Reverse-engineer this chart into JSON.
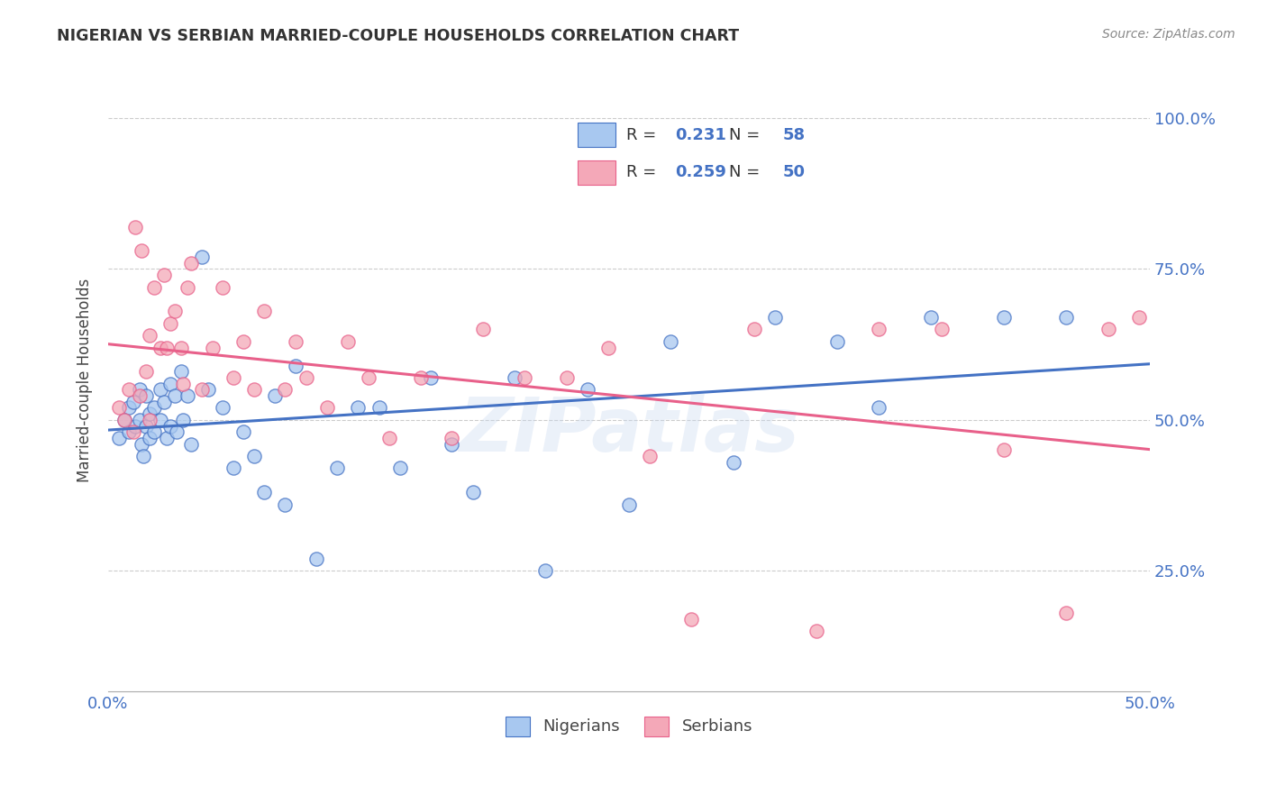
{
  "title": "NIGERIAN VS SERBIAN MARRIED-COUPLE HOUSEHOLDS CORRELATION CHART",
  "source": "Source: ZipAtlas.com",
  "ylabel": "Married-couple Households",
  "x_min": 0.0,
  "x_max": 0.5,
  "y_min": 0.05,
  "y_max": 1.08,
  "nigerian_R": 0.231,
  "nigerian_N": 58,
  "serbian_R": 0.259,
  "serbian_N": 50,
  "nigerian_color": "#A8C8F0",
  "serbian_color": "#F4A8B8",
  "nigerian_line_color": "#4472C4",
  "serbian_line_color": "#E8608A",
  "watermark": "ZIPatlas",
  "nigerian_x": [
    0.005,
    0.008,
    0.01,
    0.01,
    0.012,
    0.013,
    0.015,
    0.015,
    0.016,
    0.017,
    0.018,
    0.018,
    0.02,
    0.02,
    0.022,
    0.022,
    0.025,
    0.025,
    0.027,
    0.028,
    0.03,
    0.03,
    0.032,
    0.033,
    0.035,
    0.036,
    0.038,
    0.04,
    0.045,
    0.048,
    0.055,
    0.06,
    0.065,
    0.07,
    0.075,
    0.08,
    0.085,
    0.09,
    0.1,
    0.11,
    0.12,
    0.13,
    0.14,
    0.155,
    0.165,
    0.175,
    0.195,
    0.21,
    0.23,
    0.25,
    0.27,
    0.3,
    0.32,
    0.35,
    0.37,
    0.395,
    0.43,
    0.46
  ],
  "nigerian_y": [
    0.47,
    0.5,
    0.52,
    0.48,
    0.53,
    0.49,
    0.55,
    0.5,
    0.46,
    0.44,
    0.54,
    0.49,
    0.51,
    0.47,
    0.52,
    0.48,
    0.55,
    0.5,
    0.53,
    0.47,
    0.56,
    0.49,
    0.54,
    0.48,
    0.58,
    0.5,
    0.54,
    0.46,
    0.77,
    0.55,
    0.52,
    0.42,
    0.48,
    0.44,
    0.38,
    0.54,
    0.36,
    0.59,
    0.27,
    0.42,
    0.52,
    0.52,
    0.42,
    0.57,
    0.46,
    0.38,
    0.57,
    0.25,
    0.55,
    0.36,
    0.63,
    0.43,
    0.67,
    0.63,
    0.52,
    0.67,
    0.67,
    0.67
  ],
  "serbian_x": [
    0.005,
    0.008,
    0.01,
    0.012,
    0.013,
    0.015,
    0.016,
    0.018,
    0.02,
    0.02,
    0.022,
    0.025,
    0.027,
    0.028,
    0.03,
    0.032,
    0.035,
    0.036,
    0.038,
    0.04,
    0.045,
    0.05,
    0.055,
    0.06,
    0.065,
    0.07,
    0.075,
    0.085,
    0.09,
    0.095,
    0.105,
    0.115,
    0.125,
    0.135,
    0.15,
    0.165,
    0.18,
    0.2,
    0.22,
    0.24,
    0.26,
    0.28,
    0.31,
    0.34,
    0.37,
    0.4,
    0.43,
    0.46,
    0.48,
    0.495
  ],
  "serbian_y": [
    0.52,
    0.5,
    0.55,
    0.48,
    0.82,
    0.54,
    0.78,
    0.58,
    0.64,
    0.5,
    0.72,
    0.62,
    0.74,
    0.62,
    0.66,
    0.68,
    0.62,
    0.56,
    0.72,
    0.76,
    0.55,
    0.62,
    0.72,
    0.57,
    0.63,
    0.55,
    0.68,
    0.55,
    0.63,
    0.57,
    0.52,
    0.63,
    0.57,
    0.47,
    0.57,
    0.47,
    0.65,
    0.57,
    0.57,
    0.62,
    0.44,
    0.17,
    0.65,
    0.15,
    0.65,
    0.65,
    0.45,
    0.18,
    0.65,
    0.67
  ]
}
